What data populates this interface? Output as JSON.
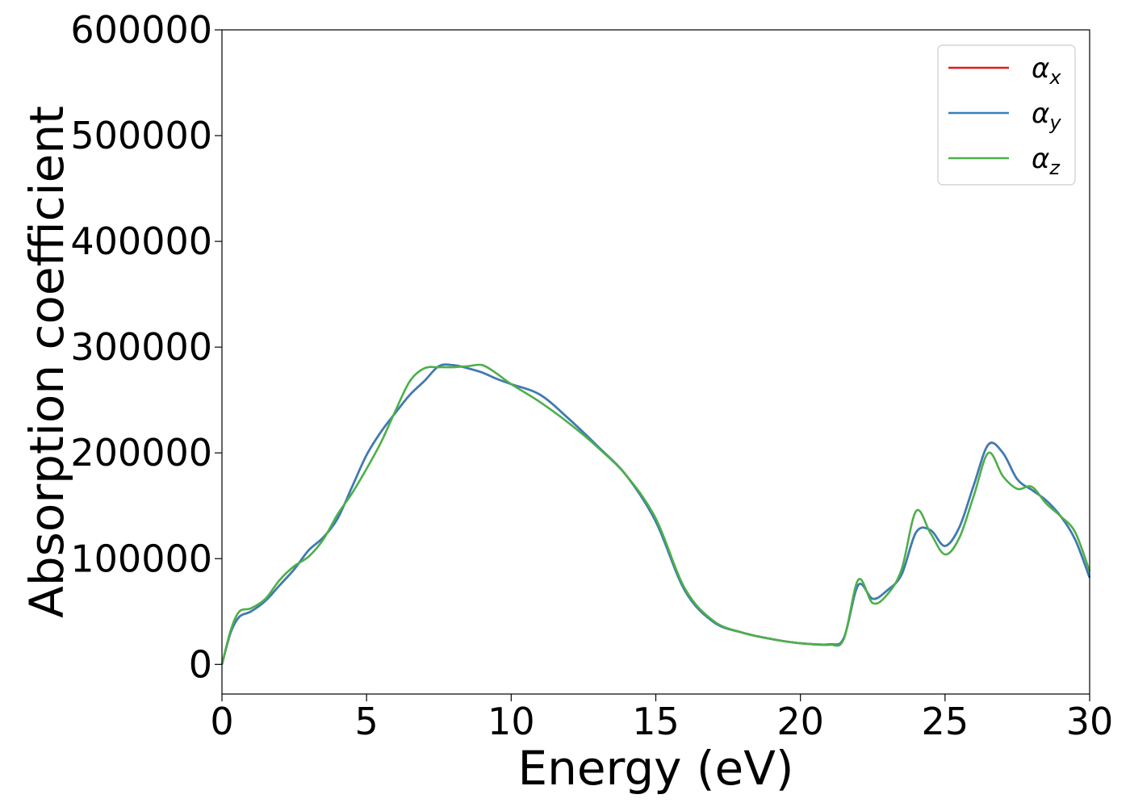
{
  "chart_data": {
    "type": "line",
    "title": "",
    "xlabel": "Energy (eV)",
    "ylabel": "Absorption coefficient",
    "xlim": [
      0,
      30
    ],
    "ylim": [
      -28000,
      600000
    ],
    "xticks": [
      0,
      5,
      10,
      15,
      20,
      25,
      30
    ],
    "yticks": [
      0,
      100000,
      200000,
      300000,
      400000,
      500000,
      600000
    ],
    "grid": false,
    "legend_position": "top-right",
    "series": [
      {
        "name": "α",
        "subscript": "x",
        "color": "#e41a1c",
        "x": [
          0,
          0.3,
          0.6,
          1,
          1.5,
          2,
          2.5,
          3,
          3.5,
          4,
          4.5,
          5,
          5.5,
          6,
          6.5,
          7,
          7.5,
          8,
          8.5,
          9,
          9.5,
          10,
          11,
          12,
          13,
          14,
          15,
          16,
          17,
          18,
          19,
          20,
          21,
          21.5,
          22,
          22.5,
          23,
          23.5,
          24,
          24.5,
          25,
          25.5,
          26,
          26.5,
          27,
          27.5,
          28,
          28.5,
          29,
          29.5,
          30
        ],
        "y": [
          0,
          30000,
          45000,
          50000,
          60000,
          75000,
          90000,
          108000,
          120000,
          138000,
          168000,
          198000,
          220000,
          238000,
          255000,
          268000,
          282000,
          283000,
          280000,
          276000,
          270000,
          265000,
          255000,
          232000,
          206000,
          178000,
          135000,
          70000,
          40000,
          30000,
          24000,
          20000,
          19000,
          25000,
          75000,
          62000,
          70000,
          85000,
          125000,
          127000,
          112000,
          130000,
          170000,
          208000,
          200000,
          175000,
          165000,
          155000,
          140000,
          118000,
          82000
        ]
      },
      {
        "name": "α",
        "subscript": "y",
        "color": "#377eb8",
        "x": [
          0,
          0.3,
          0.6,
          1,
          1.5,
          2,
          2.5,
          3,
          3.5,
          4,
          4.5,
          5,
          5.5,
          6,
          6.5,
          7,
          7.5,
          8,
          8.5,
          9,
          9.5,
          10,
          11,
          12,
          13,
          14,
          15,
          16,
          17,
          18,
          19,
          20,
          21,
          21.5,
          22,
          22.5,
          23,
          23.5,
          24,
          24.5,
          25,
          25.5,
          26,
          26.5,
          27,
          27.5,
          28,
          28.5,
          29,
          29.5,
          30
        ],
        "y": [
          0,
          30000,
          45000,
          50000,
          60000,
          75000,
          90000,
          108000,
          120000,
          138000,
          168000,
          198000,
          220000,
          238000,
          255000,
          268000,
          282000,
          283000,
          280000,
          276000,
          270000,
          265000,
          255000,
          232000,
          206000,
          178000,
          135000,
          70000,
          40000,
          30000,
          24000,
          20000,
          19000,
          25000,
          75000,
          62000,
          70000,
          85000,
          125000,
          127000,
          112000,
          130000,
          170000,
          208000,
          200000,
          175000,
          165000,
          155000,
          140000,
          118000,
          82000
        ]
      },
      {
        "name": "α",
        "subscript": "z",
        "color": "#4daf4a",
        "x": [
          0,
          0.3,
          0.6,
          1,
          1.5,
          2,
          2.5,
          3,
          3.5,
          4,
          4.5,
          5,
          5.5,
          6,
          6.5,
          7,
          7.5,
          8,
          8.5,
          9,
          9.5,
          10,
          11,
          12,
          13,
          14,
          15,
          16,
          17,
          18,
          19,
          20,
          21,
          21.5,
          22,
          22.5,
          23,
          23.5,
          24,
          24.5,
          25,
          25.5,
          26,
          26.5,
          27,
          27.5,
          28,
          28.5,
          29,
          29.5,
          30
        ],
        "y": [
          0,
          32000,
          50000,
          53000,
          62000,
          80000,
          93000,
          102000,
          118000,
          142000,
          162000,
          185000,
          210000,
          240000,
          268000,
          280000,
          281000,
          281000,
          282000,
          283000,
          275000,
          265000,
          248000,
          228000,
          205000,
          178000,
          138000,
          72000,
          41000,
          30000,
          24000,
          20000,
          18500,
          24000,
          80000,
          58000,
          66000,
          90000,
          145000,
          124000,
          104000,
          120000,
          160000,
          200000,
          178000,
          166000,
          168000,
          152000,
          140000,
          125000,
          88000
        ]
      }
    ]
  }
}
